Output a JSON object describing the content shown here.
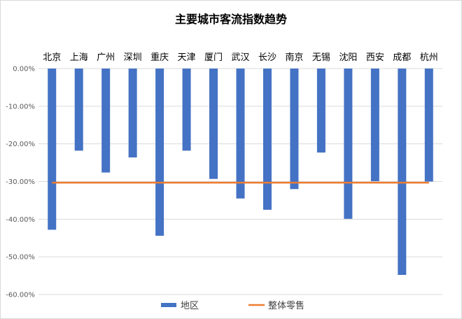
{
  "chart_data": {
    "type": "bar",
    "title": "主要城市客流指数趋势",
    "xlabel": "",
    "ylabel": "",
    "categories": [
      "北京",
      "上海",
      "广州",
      "深圳",
      "重庆",
      "天津",
      "厦门",
      "武汉",
      "长沙",
      "南京",
      "无锡",
      "沈阳",
      "西安",
      "成都",
      "杭州"
    ],
    "series": [
      {
        "name": "地区",
        "type": "bar",
        "color": "#4472c4",
        "values": [
          -42.8,
          -21.8,
          -27.6,
          -23.6,
          -44.4,
          -21.8,
          -29.3,
          -34.5,
          -37.5,
          -32.0,
          -22.3,
          -39.9,
          -29.9,
          -54.8,
          -30.0
        ]
      },
      {
        "name": "整体零售",
        "type": "line",
        "color": "#ed7d31",
        "value": -30.3
      }
    ],
    "ylim": [
      -60,
      0
    ],
    "y_ticks": [
      "0.00%",
      "-10.00%",
      "-20.00%",
      "-30.00%",
      "-40.00%",
      "-50.00%",
      "-60.00%"
    ],
    "y_tick_values": [
      0,
      -10,
      -20,
      -30,
      -40,
      -50,
      -60
    ],
    "grid": true,
    "category_labels_position": "top",
    "legend_position": "bottom"
  }
}
